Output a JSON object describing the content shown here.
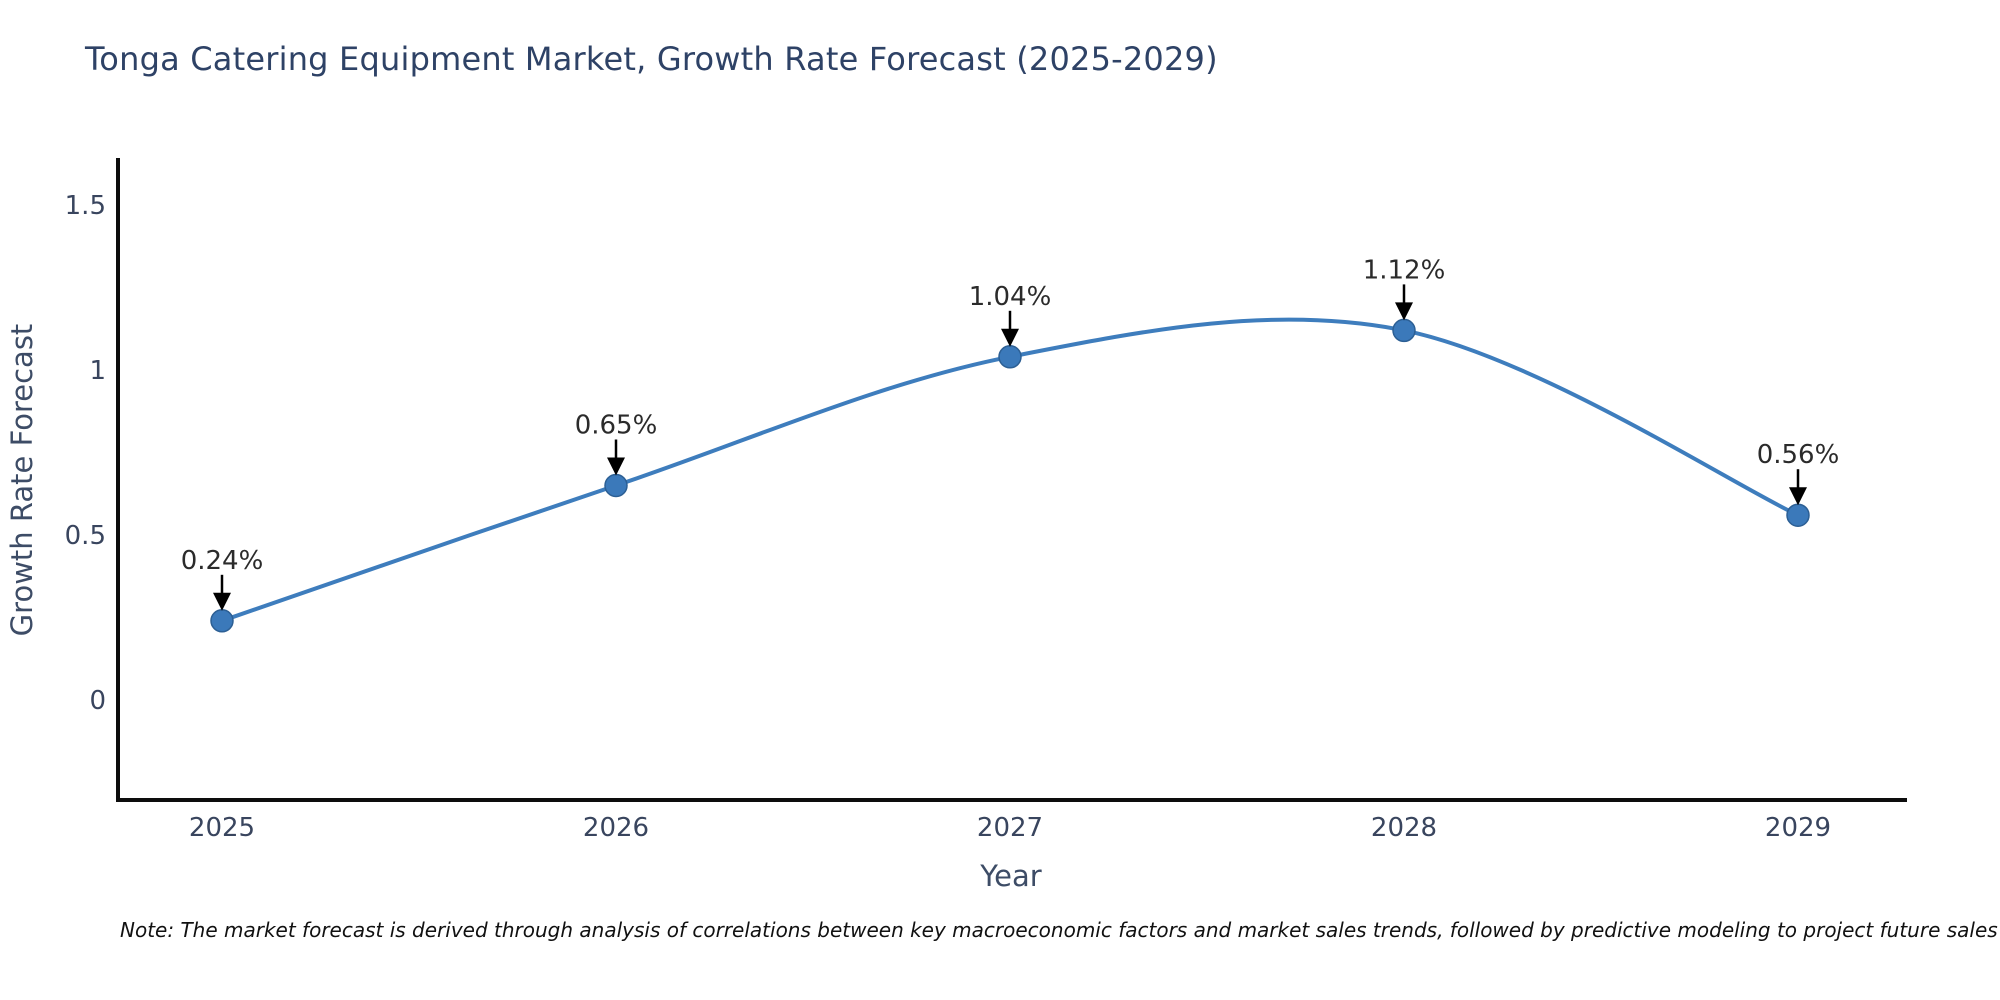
{
  "title": "Tonga Catering Equipment Market, Growth Rate Forecast (2025-2029)",
  "note": "Note: The market forecast is derived through analysis of correlations between key macroeconomic factors and market sales trends, followed by predictive modeling to project future sales",
  "chart_data": {
    "type": "line",
    "title": "Tonga Catering Equipment Market, Growth Rate Forecast (2025-2029)",
    "x": [
      "2025",
      "2026",
      "2027",
      "2028",
      "2029"
    ],
    "series": [
      {
        "name": "Growth Rate Forecast",
        "values": [
          0.24,
          0.65,
          1.04,
          1.12,
          0.56
        ]
      }
    ],
    "point_labels": [
      "0.24%",
      "0.65%",
      "1.04%",
      "1.12%",
      "0.56%"
    ],
    "xlabel": "Year",
    "ylabel": "Growth Rate Forecast",
    "yticks": [
      0,
      0.5,
      1,
      1.5
    ],
    "ylim": [
      -0.32,
      1.64
    ],
    "grid": false,
    "legend": "none",
    "line_shape": "spline",
    "colors": {
      "line": "#3e7dbd",
      "marker_fill": "#3b79ba",
      "marker_edge": "#2c5f94",
      "axis_line": "#0d0d0d",
      "title_text": "#2e4266",
      "tick_text": "#39455e",
      "axis_label_text": "#3d4c66",
      "point_label_text": "#2b2b2b",
      "arrow": "#000000"
    }
  }
}
